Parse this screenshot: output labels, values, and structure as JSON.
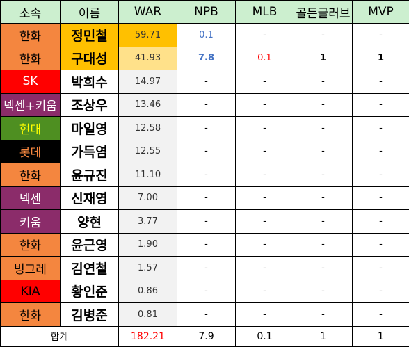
{
  "headers": [
    "소속",
    "이름",
    "WAR",
    "NPB",
    "MLB",
    "골든글러브",
    "MVP"
  ],
  "rows": [
    {
      "team": "한화",
      "team_bg": "#f4863f",
      "team_color": "#000000",
      "name": "정민철",
      "name_bg": "#ffc000",
      "war": "59.71",
      "war_bg": "#ffc000",
      "npb": "0.1",
      "npb_color": "#4472c4",
      "npb_bold": false,
      "mlb": "-",
      "mlb_color": "#000000",
      "gg": "-",
      "mvp": "-"
    },
    {
      "team": "한화",
      "team_bg": "#f4863f",
      "team_color": "#000000",
      "name": "구대성",
      "name_bg": "#ffc000",
      "war": "41.93",
      "war_bg": "#ffe18a",
      "npb": "7.8",
      "npb_color": "#4472c4",
      "npb_bold": true,
      "mlb": "0.1",
      "mlb_color": "#ff0000",
      "gg": "1",
      "mvp": "1"
    },
    {
      "team": "SK",
      "team_bg": "#ff0000",
      "team_color": "#ffffff",
      "name": "박희수",
      "name_bg": "#ffffff",
      "war": "14.97",
      "war_bg": "#f2f2f2",
      "npb": "-",
      "npb_color": "#000000",
      "npb_bold": false,
      "mlb": "-",
      "mlb_color": "#000000",
      "gg": "-",
      "mvp": "-"
    },
    {
      "team": "넥센+키움",
      "team_bg": "#8b2c6a",
      "team_color": "#ffffff",
      "name": "조상우",
      "name_bg": "#ffffff",
      "war": "13.46",
      "war_bg": "#f2f2f2",
      "npb": "-",
      "npb_color": "#000000",
      "npb_bold": false,
      "mlb": "-",
      "mlb_color": "#000000",
      "gg": "-",
      "mvp": "-"
    },
    {
      "team": "현대",
      "team_bg": "#4e8f21",
      "team_color": "#ffff00",
      "name": "마일영",
      "name_bg": "#ffffff",
      "war": "12.58",
      "war_bg": "#f2f2f2",
      "npb": "-",
      "npb_color": "#000000",
      "npb_bold": false,
      "mlb": "-",
      "mlb_color": "#000000",
      "gg": "-",
      "mvp": "-"
    },
    {
      "team": "롯데",
      "team_bg": "#000000",
      "team_color": "#f4863f",
      "name": "가득염",
      "name_bg": "#ffffff",
      "war": "12.55",
      "war_bg": "#f2f2f2",
      "npb": "-",
      "npb_color": "#000000",
      "npb_bold": false,
      "mlb": "-",
      "mlb_color": "#000000",
      "gg": "-",
      "mvp": "-"
    },
    {
      "team": "한화",
      "team_bg": "#f4863f",
      "team_color": "#000000",
      "name": "윤규진",
      "name_bg": "#ffffff",
      "war": "11.10",
      "war_bg": "#f2f2f2",
      "npb": "-",
      "npb_color": "#000000",
      "npb_bold": false,
      "mlb": "-",
      "mlb_color": "#000000",
      "gg": "-",
      "mvp": "-"
    },
    {
      "team": "넥센",
      "team_bg": "#8b2c6a",
      "team_color": "#ffffff",
      "name": "신재영",
      "name_bg": "#ffffff",
      "war": "7.00",
      "war_bg": "#f2f2f2",
      "npb": "-",
      "npb_color": "#000000",
      "npb_bold": false,
      "mlb": "-",
      "mlb_color": "#000000",
      "gg": "-",
      "mvp": "-"
    },
    {
      "team": "키움",
      "team_bg": "#8b2c6a",
      "team_color": "#ffffff",
      "name": "양현",
      "name_bg": "#ffffff",
      "war": "3.77",
      "war_bg": "#f2f2f2",
      "npb": "-",
      "npb_color": "#000000",
      "npb_bold": false,
      "mlb": "-",
      "mlb_color": "#000000",
      "gg": "-",
      "mvp": "-"
    },
    {
      "team": "한화",
      "team_bg": "#f4863f",
      "team_color": "#000000",
      "name": "윤근영",
      "name_bg": "#ffffff",
      "war": "1.90",
      "war_bg": "#f2f2f2",
      "npb": "-",
      "npb_color": "#000000",
      "npb_bold": false,
      "mlb": "-",
      "mlb_color": "#000000",
      "gg": "-",
      "mvp": "-"
    },
    {
      "team": "빙그레",
      "team_bg": "#f4863f",
      "team_color": "#000000",
      "name": "김연철",
      "name_bg": "#ffffff",
      "war": "1.57",
      "war_bg": "#f2f2f2",
      "npb": "-",
      "npb_color": "#000000",
      "npb_bold": false,
      "mlb": "-",
      "mlb_color": "#000000",
      "gg": "-",
      "mvp": "-"
    },
    {
      "team": "KIA",
      "team_bg": "#ff0000",
      "team_color": "#000000",
      "name": "황인준",
      "name_bg": "#ffffff",
      "war": "0.86",
      "war_bg": "#f2f2f2",
      "npb": "-",
      "npb_color": "#000000",
      "npb_bold": false,
      "mlb": "-",
      "mlb_color": "#000000",
      "gg": "-",
      "mvp": "-"
    },
    {
      "team": "한화",
      "team_bg": "#f4863f",
      "team_color": "#000000",
      "name": "김병준",
      "name_bg": "#ffffff",
      "war": "0.81",
      "war_bg": "#f2f2f2",
      "npb": "-",
      "npb_color": "#000000",
      "npb_bold": false,
      "mlb": "-",
      "mlb_color": "#000000",
      "gg": "-",
      "mvp": "-"
    }
  ],
  "total": {
    "label": "합계",
    "war": "182.21",
    "war_color": "#ff0000",
    "npb": "7.9",
    "mlb": "0.1",
    "gg": "1",
    "mvp": "1"
  },
  "colors": {
    "header_bg": "#ccefcf",
    "border": "#000000"
  }
}
